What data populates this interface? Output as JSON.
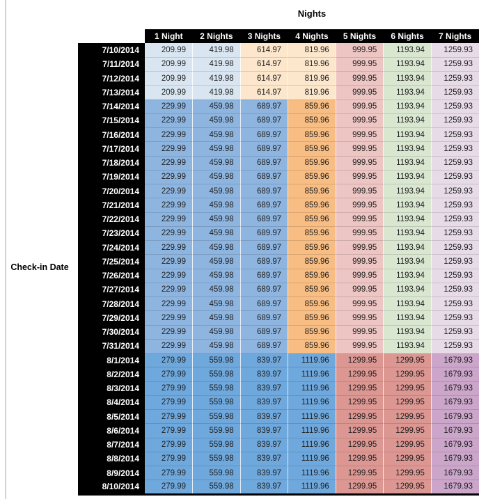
{
  "palette": {
    "header_bg": "#000000",
    "header_text": "#ffffff",
    "date_col_bg": "#000000",
    "date_col_text": "#ffffff",
    "value_text": "#1f1f1f",
    "light_blue": "#d9e6f2",
    "med_blue": "#8eb5e0",
    "dark_blue": "#6fa8dc",
    "light_orange": "#fce6cc",
    "med_orange": "#f8bd83",
    "light_pink": "#edc5c3",
    "light_green": "#d9e7d1",
    "light_lavender": "#e7dbe8",
    "med_red": "#dd9793",
    "med_purple": "#cba6ca"
  },
  "color_schemes": {
    "early_july": [
      "light_blue",
      "light_blue",
      "light_orange",
      "light_orange",
      "light_pink",
      "light_green",
      "light_lavender"
    ],
    "mid_july": [
      "med_blue",
      "med_blue",
      "med_blue",
      "med_orange",
      "light_pink",
      "light_green",
      "light_lavender"
    ],
    "august": [
      "dark_blue",
      "dark_blue",
      "dark_blue",
      "dark_blue",
      "med_red",
      "med_red",
      "med_purple"
    ]
  },
  "chart_data": {
    "type": "table",
    "title": "Nights",
    "row_label": "Check-in Date",
    "columns": [
      "1 Night",
      "2 Nights",
      "3 Nights",
      "4 Nights",
      "5 Nights",
      "6 Nights",
      "7 Nights"
    ],
    "rows": [
      {
        "date": "7/10/2014",
        "scheme": "early_july",
        "values": [
          "209.99",
          "419.98",
          "614.97",
          "819.96",
          "999.95",
          "1193.94",
          "1259.93"
        ]
      },
      {
        "date": "7/11/2014",
        "scheme": "early_july",
        "values": [
          "209.99",
          "419.98",
          "614.97",
          "819.96",
          "999.95",
          "1193.94",
          "1259.93"
        ]
      },
      {
        "date": "7/12/2014",
        "scheme": "early_july",
        "values": [
          "209.99",
          "419.98",
          "614.97",
          "819.96",
          "999.95",
          "1193.94",
          "1259.93"
        ]
      },
      {
        "date": "7/13/2014",
        "scheme": "early_july",
        "values": [
          "209.99",
          "419.98",
          "614.97",
          "819.96",
          "999.95",
          "1193.94",
          "1259.93"
        ]
      },
      {
        "date": "7/14/2014",
        "scheme": "mid_july",
        "values": [
          "229.99",
          "459.98",
          "689.97",
          "859.96",
          "999.95",
          "1193.94",
          "1259.93"
        ]
      },
      {
        "date": "7/15/2014",
        "scheme": "mid_july",
        "values": [
          "229.99",
          "459.98",
          "689.97",
          "859.96",
          "999.95",
          "1193.94",
          "1259.93"
        ]
      },
      {
        "date": "7/16/2014",
        "scheme": "mid_july",
        "values": [
          "229.99",
          "459.98",
          "689.97",
          "859.96",
          "999.95",
          "1193.94",
          "1259.93"
        ]
      },
      {
        "date": "7/17/2014",
        "scheme": "mid_july",
        "values": [
          "229.99",
          "459.98",
          "689.97",
          "859.96",
          "999.95",
          "1193.94",
          "1259.93"
        ]
      },
      {
        "date": "7/18/2014",
        "scheme": "mid_july",
        "values": [
          "229.99",
          "459.98",
          "689.97",
          "859.96",
          "999.95",
          "1193.94",
          "1259.93"
        ]
      },
      {
        "date": "7/19/2014",
        "scheme": "mid_july",
        "values": [
          "229.99",
          "459.98",
          "689.97",
          "859.96",
          "999.95",
          "1193.94",
          "1259.93"
        ]
      },
      {
        "date": "7/20/2014",
        "scheme": "mid_july",
        "values": [
          "229.99",
          "459.98",
          "689.97",
          "859.96",
          "999.95",
          "1193.94",
          "1259.93"
        ]
      },
      {
        "date": "7/21/2014",
        "scheme": "mid_july",
        "values": [
          "229.99",
          "459.98",
          "689.97",
          "859.96",
          "999.95",
          "1193.94",
          "1259.93"
        ]
      },
      {
        "date": "7/22/2014",
        "scheme": "mid_july",
        "values": [
          "229.99",
          "459.98",
          "689.97",
          "859.96",
          "999.95",
          "1193.94",
          "1259.93"
        ]
      },
      {
        "date": "7/23/2014",
        "scheme": "mid_july",
        "values": [
          "229.99",
          "459.98",
          "689.97",
          "859.96",
          "999.95",
          "1193.94",
          "1259.93"
        ]
      },
      {
        "date": "7/24/2014",
        "scheme": "mid_july",
        "values": [
          "229.99",
          "459.98",
          "689.97",
          "859.96",
          "999.95",
          "1193.94",
          "1259.93"
        ]
      },
      {
        "date": "7/25/2014",
        "scheme": "mid_july",
        "values": [
          "229.99",
          "459.98",
          "689.97",
          "859.96",
          "999.95",
          "1193.94",
          "1259.93"
        ]
      },
      {
        "date": "7/26/2014",
        "scheme": "mid_july",
        "values": [
          "229.99",
          "459.98",
          "689.97",
          "859.96",
          "999.95",
          "1193.94",
          "1259.93"
        ]
      },
      {
        "date": "7/27/2014",
        "scheme": "mid_july",
        "values": [
          "229.99",
          "459.98",
          "689.97",
          "859.96",
          "999.95",
          "1193.94",
          "1259.93"
        ]
      },
      {
        "date": "7/28/2014",
        "scheme": "mid_july",
        "values": [
          "229.99",
          "459.98",
          "689.97",
          "859.96",
          "999.95",
          "1193.94",
          "1259.93"
        ]
      },
      {
        "date": "7/29/2014",
        "scheme": "mid_july",
        "values": [
          "229.99",
          "459.98",
          "689.97",
          "859.96",
          "999.95",
          "1193.94",
          "1259.93"
        ]
      },
      {
        "date": "7/30/2014",
        "scheme": "mid_july",
        "values": [
          "229.99",
          "459.98",
          "689.97",
          "859.96",
          "999.95",
          "1193.94",
          "1259.93"
        ]
      },
      {
        "date": "7/31/2014",
        "scheme": "mid_july",
        "values": [
          "229.99",
          "459.98",
          "689.97",
          "859.96",
          "999.95",
          "1193.94",
          "1259.93"
        ]
      },
      {
        "date": "8/1/2014",
        "scheme": "august",
        "values": [
          "279.99",
          "559.98",
          "839.97",
          "1119.96",
          "1299.95",
          "1299.95",
          "1679.93"
        ]
      },
      {
        "date": "8/2/2014",
        "scheme": "august",
        "values": [
          "279.99",
          "559.98",
          "839.97",
          "1119.96",
          "1299.95",
          "1299.95",
          "1679.93"
        ]
      },
      {
        "date": "8/3/2014",
        "scheme": "august",
        "values": [
          "279.99",
          "559.98",
          "839.97",
          "1119.96",
          "1299.95",
          "1299.95",
          "1679.93"
        ]
      },
      {
        "date": "8/4/2014",
        "scheme": "august",
        "values": [
          "279.99",
          "559.98",
          "839.97",
          "1119.96",
          "1299.95",
          "1299.95",
          "1679.93"
        ]
      },
      {
        "date": "8/5/2014",
        "scheme": "august",
        "values": [
          "279.99",
          "559.98",
          "839.97",
          "1119.96",
          "1299.95",
          "1299.95",
          "1679.93"
        ]
      },
      {
        "date": "8/6/2014",
        "scheme": "august",
        "values": [
          "279.99",
          "559.98",
          "839.97",
          "1119.96",
          "1299.95",
          "1299.95",
          "1679.93"
        ]
      },
      {
        "date": "8/7/2014",
        "scheme": "august",
        "values": [
          "279.99",
          "559.98",
          "839.97",
          "1119.96",
          "1299.95",
          "1299.95",
          "1679.93"
        ]
      },
      {
        "date": "8/8/2014",
        "scheme": "august",
        "values": [
          "279.99",
          "559.98",
          "839.97",
          "1119.96",
          "1299.95",
          "1299.95",
          "1679.93"
        ]
      },
      {
        "date": "8/9/2014",
        "scheme": "august",
        "values": [
          "279.99",
          "559.98",
          "839.97",
          "1119.96",
          "1299.95",
          "1299.95",
          "1679.93"
        ]
      },
      {
        "date": "8/10/2014",
        "scheme": "august",
        "values": [
          "279.99",
          "559.98",
          "839.97",
          "1119.96",
          "1299.95",
          "1299.95",
          "1679.93"
        ]
      }
    ]
  }
}
